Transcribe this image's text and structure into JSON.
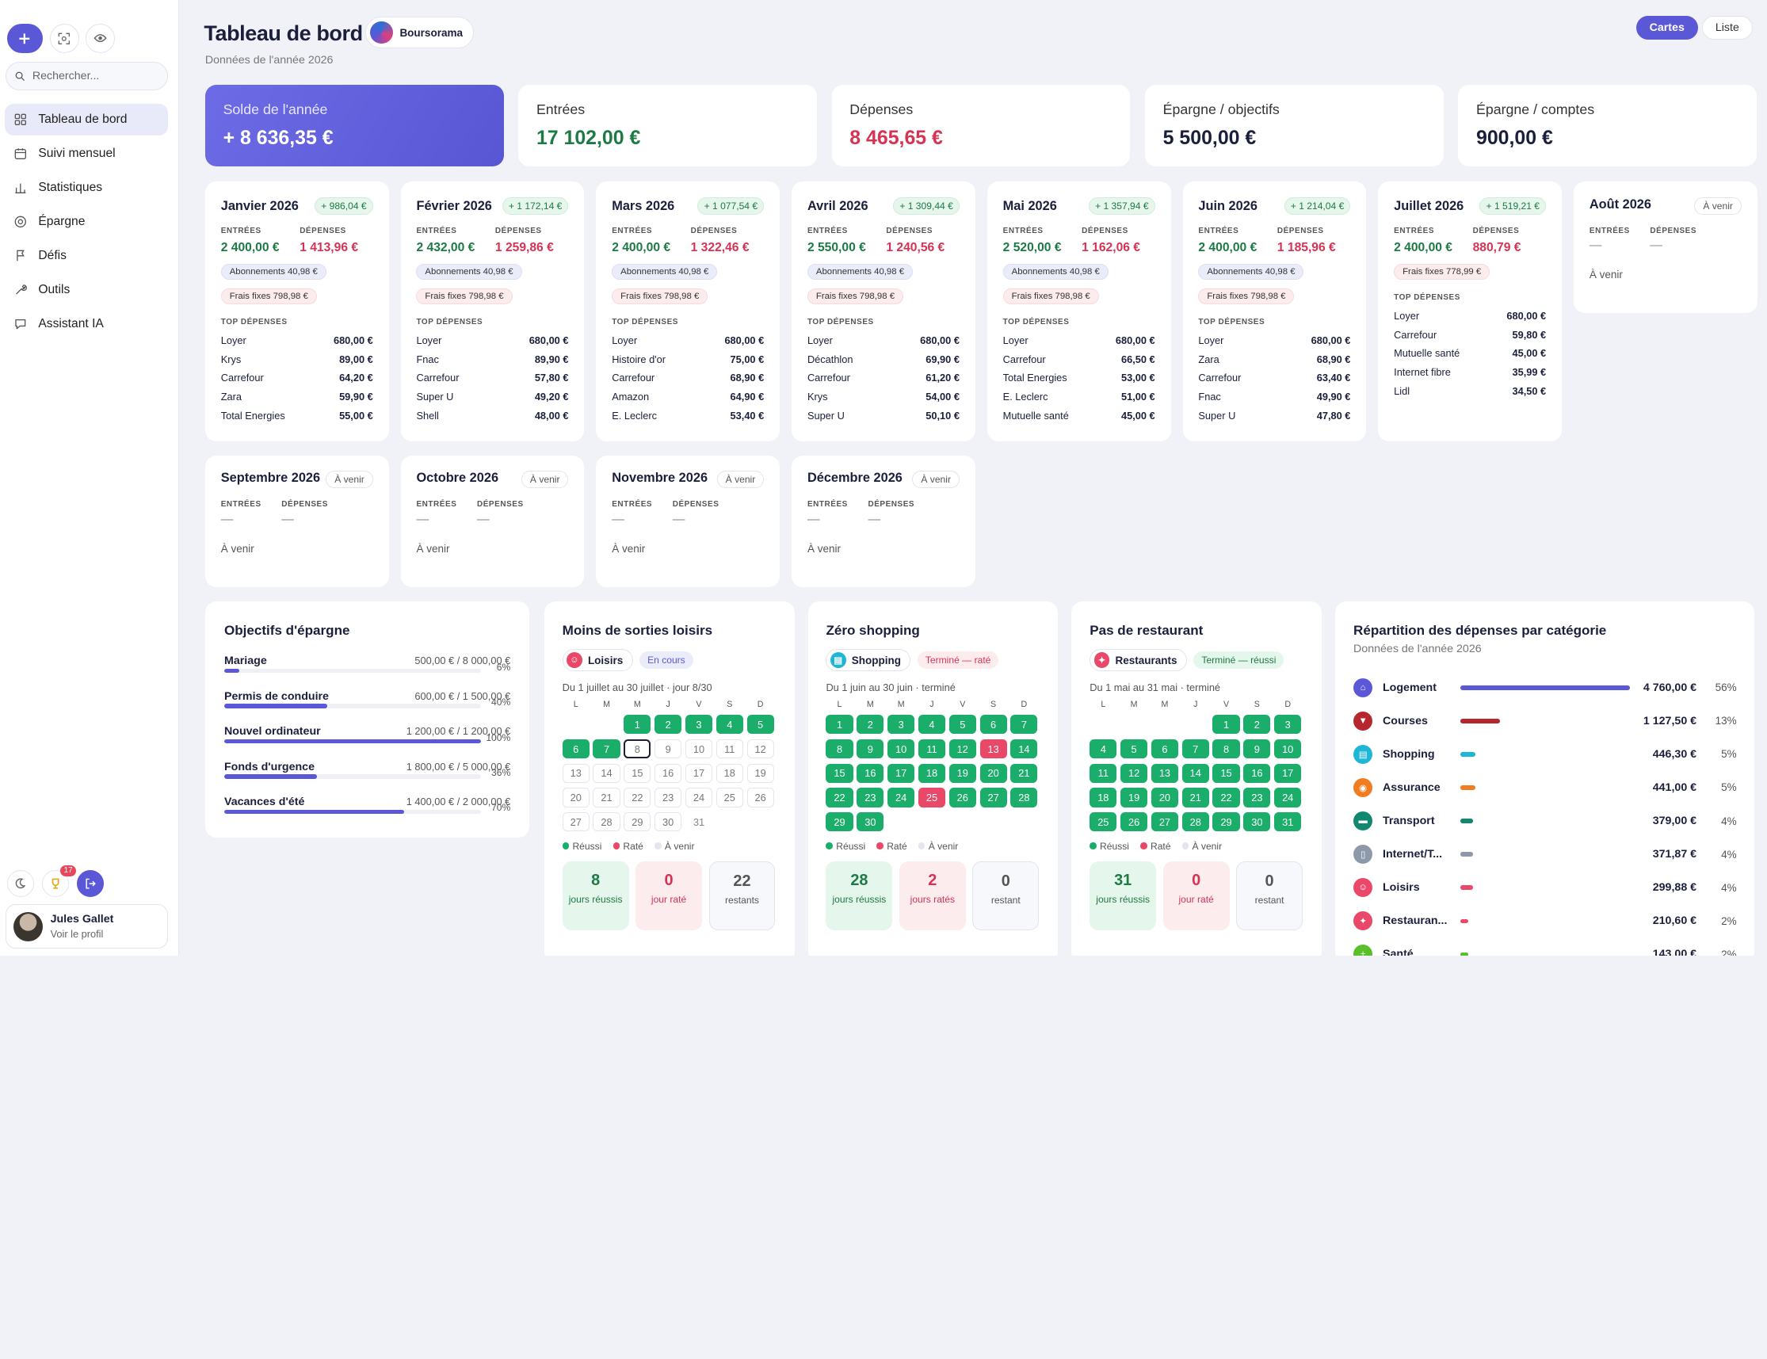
{
  "sidebar": {
    "search_placeholder": "Rechercher...",
    "nav": [
      {
        "label": "Tableau de bord",
        "icon": "grid-icon",
        "active": true
      },
      {
        "label": "Suivi mensuel",
        "icon": "calendar-icon"
      },
      {
        "label": "Statistiques",
        "icon": "bar-chart-icon"
      },
      {
        "label": "Épargne",
        "icon": "target-icon"
      },
      {
        "label": "Défis",
        "icon": "flag-icon"
      },
      {
        "label": "Outils",
        "icon": "wrench-icon"
      },
      {
        "label": "Assistant IA",
        "icon": "chat-icon"
      }
    ],
    "badge_count": "17",
    "profile": {
      "name": "Jules Gallet",
      "sub": "Voir le profil"
    }
  },
  "header": {
    "title": "Tableau de bord",
    "bank": "Boursorama",
    "subtitle": "Données de l'année 2026",
    "view_cards": "Cartes",
    "view_list": "Liste"
  },
  "kpis": [
    {
      "label": "Solde de l'année",
      "value": "+ 8 636,35 €",
      "color": "#ffffff"
    },
    {
      "label": "Entrées",
      "value": "17 102,00 €",
      "color": "#1d7a44"
    },
    {
      "label": "Dépenses",
      "value": "8 465,65 €",
      "color": "#d63354"
    },
    {
      "label": "Épargne / objectifs",
      "value": "5 500,00 €",
      "color": "#1b1f3b"
    },
    {
      "label": "Épargne / comptes",
      "value": "900,00 €",
      "color": "#1b1f3b"
    }
  ],
  "labels": {
    "entrees": "ENTRÉES",
    "depenses": "DÉPENSES",
    "top": "TOP DÉPENSES",
    "a_venir": "À venir",
    "dash": "—"
  },
  "months": [
    {
      "name": "Janvier 2026",
      "balance": "+ 986,04 €",
      "in": "2 400,00 €",
      "out": "1 413,96 €",
      "sub": "Abonnements 40,98 €",
      "fix": "Frais fixes 798,98 €",
      "top": [
        [
          "Loyer",
          "680,00 €"
        ],
        [
          "Krys",
          "89,00 €"
        ],
        [
          "Carrefour",
          "64,20 €"
        ],
        [
          "Zara",
          "59,90 €"
        ],
        [
          "Total Energies",
          "55,00 €"
        ]
      ]
    },
    {
      "name": "Février 2026",
      "balance": "+ 1 172,14 €",
      "in": "2 432,00 €",
      "out": "1 259,86 €",
      "sub": "Abonnements 40,98 €",
      "fix": "Frais fixes 798,98 €",
      "top": [
        [
          "Loyer",
          "680,00 €"
        ],
        [
          "Fnac",
          "89,90 €"
        ],
        [
          "Carrefour",
          "57,80 €"
        ],
        [
          "Super U",
          "49,20 €"
        ],
        [
          "Shell",
          "48,00 €"
        ]
      ]
    },
    {
      "name": "Mars 2026",
      "balance": "+ 1 077,54 €",
      "in": "2 400,00 €",
      "out": "1 322,46 €",
      "sub": "Abonnements 40,98 €",
      "fix": "Frais fixes 798,98 €",
      "top": [
        [
          "Loyer",
          "680,00 €"
        ],
        [
          "Histoire d'or",
          "75,00 €"
        ],
        [
          "Carrefour",
          "68,90 €"
        ],
        [
          "Amazon",
          "64,90 €"
        ],
        [
          "E. Leclerc",
          "53,40 €"
        ]
      ]
    },
    {
      "name": "Avril 2026",
      "balance": "+ 1 309,44 €",
      "in": "2 550,00 €",
      "out": "1 240,56 €",
      "sub": "Abonnements 40,98 €",
      "fix": "Frais fixes 798,98 €",
      "top": [
        [
          "Loyer",
          "680,00 €"
        ],
        [
          "Décathlon",
          "69,90 €"
        ],
        [
          "Carrefour",
          "61,20 €"
        ],
        [
          "Krys",
          "54,00 €"
        ],
        [
          "Super U",
          "50,10 €"
        ]
      ]
    },
    {
      "name": "Mai 2026",
      "balance": "+ 1 357,94 €",
      "in": "2 520,00 €",
      "out": "1 162,06 €",
      "sub": "Abonnements 40,98 €",
      "fix": "Frais fixes 798,98 €",
      "top": [
        [
          "Loyer",
          "680,00 €"
        ],
        [
          "Carrefour",
          "66,50 €"
        ],
        [
          "Total Energies",
          "53,00 €"
        ],
        [
          "E. Leclerc",
          "51,00 €"
        ],
        [
          "Mutuelle santé",
          "45,00 €"
        ]
      ]
    },
    {
      "name": "Juin 2026",
      "balance": "+ 1 214,04 €",
      "in": "2 400,00 €",
      "out": "1 185,96 €",
      "sub": "Abonnements 40,98 €",
      "fix": "Frais fixes 798,98 €",
      "top": [
        [
          "Loyer",
          "680,00 €"
        ],
        [
          "Zara",
          "68,90 €"
        ],
        [
          "Carrefour",
          "63,40 €"
        ],
        [
          "Fnac",
          "49,90 €"
        ],
        [
          "Super U",
          "47,80 €"
        ]
      ]
    },
    {
      "name": "Juillet 2026",
      "balance": "+ 1 519,21 €",
      "in": "2 400,00 €",
      "out": "880,79 €",
      "sub": "",
      "fix": "Frais fixes 778,99 €",
      "top": [
        [
          "Loyer",
          "680,00 €"
        ],
        [
          "Carrefour",
          "59,80 €"
        ],
        [
          "Mutuelle santé",
          "45,00 €"
        ],
        [
          "Internet fibre",
          "35,99 €"
        ],
        [
          "Lidl",
          "34,50 €"
        ]
      ]
    }
  ],
  "future_months": [
    "Août 2026",
    "Septembre 2026",
    "Octobre 2026",
    "Novembre 2026",
    "Décembre 2026"
  ],
  "goals": {
    "title": "Objectifs d'épargne",
    "items": [
      {
        "name": "Mariage",
        "amount": "500,00 € / 8 000,00 €",
        "pct": "6%",
        "progress": 6
      },
      {
        "name": "Permis de conduire",
        "amount": "600,00 € / 1 500,00 €",
        "pct": "40%",
        "progress": 40
      },
      {
        "name": "Nouvel ordinateur",
        "amount": "1 200,00 € / 1 200,00 €",
        "pct": "100%",
        "progress": 100
      },
      {
        "name": "Fonds d'urgence",
        "amount": "1 800,00 € / 5 000,00 €",
        "pct": "36%",
        "progress": 36
      },
      {
        "name": "Vacances d'été",
        "amount": "1 400,00 € / 2 000,00 €",
        "pct": "70%",
        "progress": 70
      }
    ]
  },
  "cal_days": [
    "L",
    "M",
    "M",
    "J",
    "V",
    "S",
    "D"
  ],
  "legend": {
    "ok": "Réussi",
    "ko": "Raté",
    "up": "À venir"
  },
  "challenges": [
    {
      "title": "Moins de sorties loisirs",
      "category": "Loisirs",
      "cat_color": "#ea4868",
      "status": "En cours",
      "status_bg": "#ebecfa",
      "status_fg": "#5a58d6",
      "range": "Du 1 juillet au 30 juillet · jour 8/30",
      "offset": 2,
      "ndays": 31,
      "days": "ooooooouuuuuuuuuuuuuuuuuuuuuuup",
      "today": 8,
      "stats": [
        {
          "n": "8",
          "l": "jours réussis",
          "k": "g"
        },
        {
          "n": "0",
          "l": "jour raté",
          "k": "r"
        },
        {
          "n": "22",
          "l": "restants",
          "k": "n"
        }
      ]
    },
    {
      "title": "Zéro shopping",
      "category": "Shopping",
      "cat_color": "#1fb5d6",
      "status": "Terminé — raté",
      "status_bg": "#fdecee",
      "status_fg": "#d63354",
      "range": "Du 1 juin au 30 juin · terminé",
      "offset": 0,
      "ndays": 30,
      "days": "ooooooooooooxoooooooooooxooooo",
      "today": 0,
      "stats": [
        {
          "n": "28",
          "l": "jours réussis",
          "k": "g"
        },
        {
          "n": "2",
          "l": "jours ratés",
          "k": "r"
        },
        {
          "n": "0",
          "l": "restant",
          "k": "n"
        }
      ]
    },
    {
      "title": "Pas de restaurant",
      "category": "Restaurants",
      "cat_color": "#ea4868",
      "status": "Terminé — réussi",
      "status_bg": "#e5f6ec",
      "status_fg": "#1d7a44",
      "range": "Du 1 mai au 31 mai · terminé",
      "offset": 4,
      "ndays": 31,
      "days": "ooooooooooooooooooooooooooooooo",
      "today": 0,
      "stats": [
        {
          "n": "31",
          "l": "jours réussis",
          "k": "g"
        },
        {
          "n": "0",
          "l": "jour raté",
          "k": "r"
        },
        {
          "n": "0",
          "l": "restant",
          "k": "n"
        }
      ]
    }
  ],
  "repartition": {
    "title": "Répartition des dépenses par catégorie",
    "subtitle": "Données de l'année 2026",
    "items": [
      {
        "name": "Logement",
        "amount": "4 760,00 €",
        "pct": "56%",
        "share": 56,
        "color": "#5a58d6",
        "icon": "home-icon"
      },
      {
        "name": "Courses",
        "amount": "1 127,50 €",
        "pct": "13%",
        "share": 13,
        "color": "#b5262e",
        "icon": "cart-icon"
      },
      {
        "name": "Shopping",
        "amount": "446,30 €",
        "pct": "5%",
        "share": 5,
        "color": "#1fb5d6",
        "icon": "bag-icon"
      },
      {
        "name": "Assurance",
        "amount": "441,00 €",
        "pct": "5%",
        "share": 5,
        "color": "#f07d22",
        "icon": "shield-icon"
      },
      {
        "name": "Transport",
        "amount": "379,00 €",
        "pct": "4%",
        "share": 4,
        "color": "#12876f",
        "icon": "car-icon"
      },
      {
        "name": "Internet/T...",
        "amount": "371,87 €",
        "pct": "4%",
        "share": 4,
        "color": "#8d99ab",
        "icon": "phone-icon"
      },
      {
        "name": "Loisirs",
        "amount": "299,88 €",
        "pct": "4%",
        "share": 4,
        "color": "#ea4868",
        "icon": "fun-icon"
      },
      {
        "name": "Restauran...",
        "amount": "210,60 €",
        "pct": "2%",
        "share": 2,
        "color": "#ea4868",
        "icon": "fork-icon"
      },
      {
        "name": "Santé",
        "amount": "143,00 €",
        "pct": "2%",
        "share": 2,
        "color": "#5bbf2a",
        "icon": "health-icon"
      }
    ]
  }
}
